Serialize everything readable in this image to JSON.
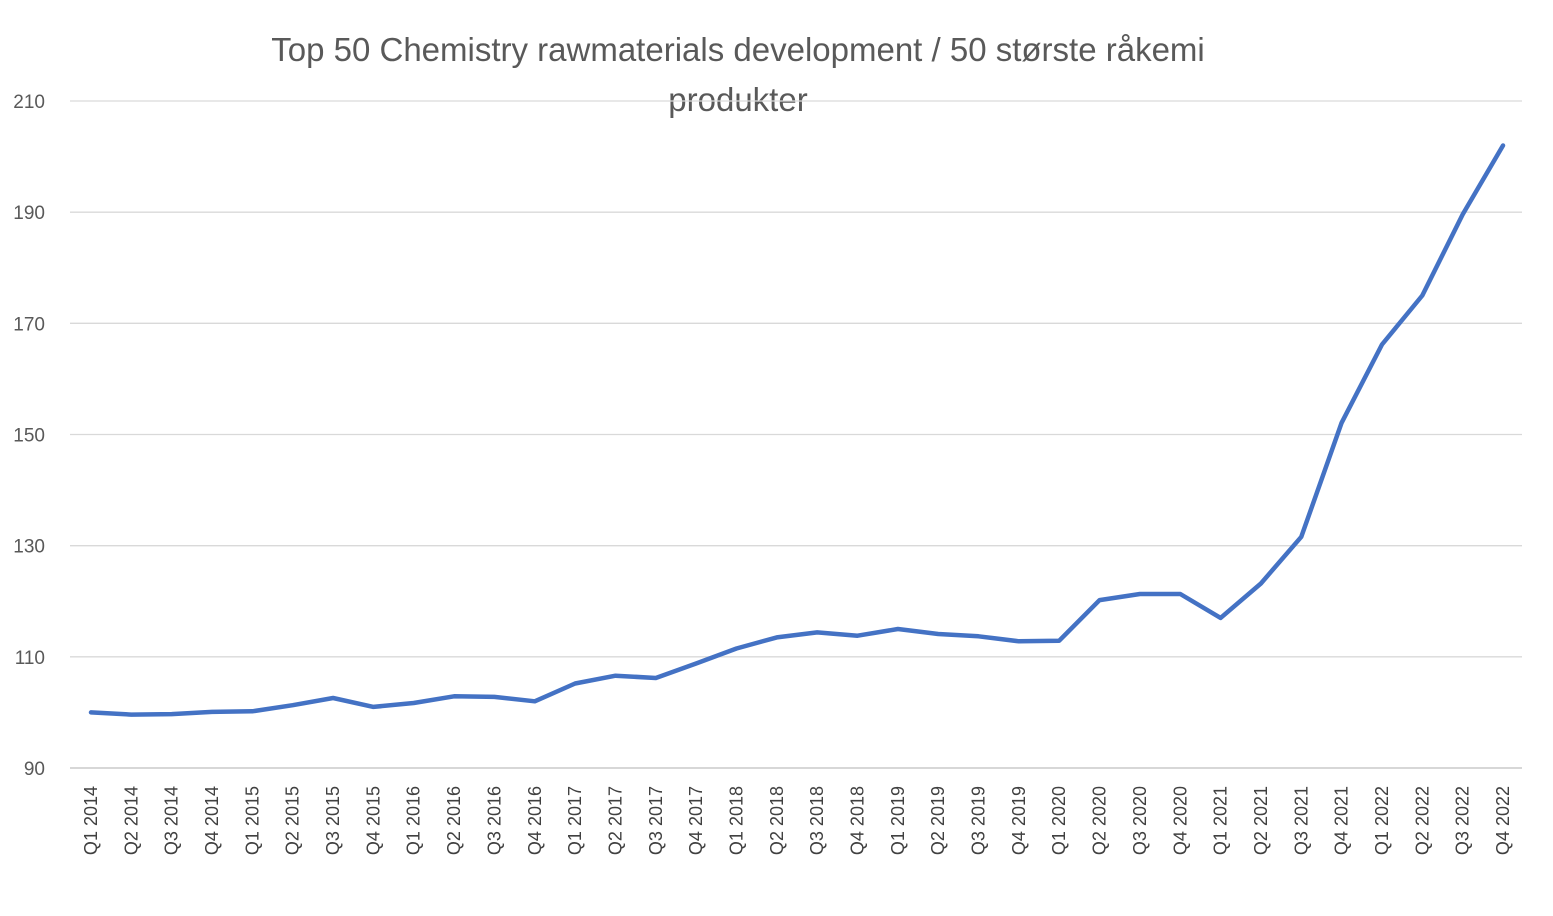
{
  "chart_data": {
    "type": "line",
    "title": "Top 50 Chemistry rawmaterials development / 50 største råkemi produkter",
    "title_lines": [
      "Top 50 Chemistry rawmaterials development / 50 største råkemi",
      "produkter"
    ],
    "xlabel": "",
    "ylabel": "",
    "categories": [
      "Q1 2014",
      "Q2 2014",
      "Q3 2014",
      "Q4 2014",
      "Q1 2015",
      "Q2 2015",
      "Q3 2015",
      "Q4 2015",
      "Q1 2016",
      "Q2 2016",
      "Q3 2016",
      "Q4 2016",
      "Q1 2017",
      "Q2 2017",
      "Q3 2017",
      "Q4 2017",
      "Q1 2018",
      "Q2 2018",
      "Q3 2018",
      "Q4 2018",
      "Q1 2019",
      "Q2 2019",
      "Q3 2019",
      "Q4 2019",
      "Q1 2020",
      "Q2 2020",
      "Q3 2020",
      "Q4 2020",
      "Q1 2021",
      "Q2 2021",
      "Q3 2021",
      "Q4 2021",
      "Q1 2022",
      "Q2 2022",
      "Q3 2022",
      "Q4 2022"
    ],
    "series": [
      {
        "values": [
          100,
          99.6,
          99.7,
          100.1,
          100.2,
          101.3,
          102.6,
          101.0,
          101.7,
          102.9,
          102.8,
          102.0,
          105.2,
          106.6,
          106.2,
          108.8,
          111.5,
          113.5,
          114.4,
          113.8,
          115.0,
          114.1,
          113.7,
          112.8,
          112.9,
          120.2,
          121.3,
          121.3,
          117.0,
          123.2,
          131.6,
          152.1,
          166.2,
          175.0,
          189.6,
          202.0
        ]
      }
    ],
    "yticks": [
      90,
      110,
      130,
      150,
      170,
      190,
      210
    ],
    "ylim": [
      90,
      210
    ],
    "grid": true,
    "legend": "none",
    "colors": {
      "line": "#4472c4",
      "grid": "#d9d9d9",
      "axis": "#bfbfbf",
      "text": "#595959"
    }
  }
}
